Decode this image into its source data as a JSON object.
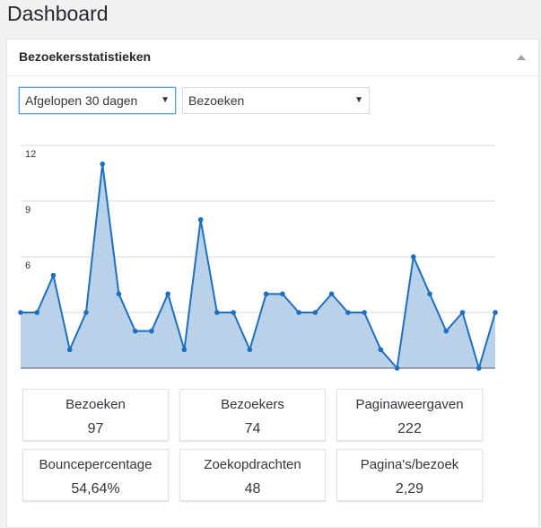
{
  "page": {
    "title": "Dashboard"
  },
  "widget": {
    "title": "Bezoekersstatistieken",
    "period_select": {
      "value": "Afgelopen 30 dagen"
    },
    "metric_select": {
      "value": "Bezoeken"
    }
  },
  "chart_data": {
    "type": "area",
    "title": "",
    "xlabel": "",
    "ylabel": "",
    "ylim": [
      0,
      12
    ],
    "yticks": [
      "3",
      "6",
      "9",
      "12"
    ],
    "grid": true,
    "series": [
      {
        "values": [
          3,
          3,
          5,
          1,
          3,
          11,
          4,
          2,
          2,
          4,
          1,
          8,
          3,
          3,
          1,
          4,
          4,
          3,
          3,
          4,
          3,
          3,
          1,
          0,
          6,
          4,
          2,
          3,
          0,
          3
        ]
      }
    ],
    "colors": {
      "line": "#1e6fbf",
      "fill": "#b9d2ea",
      "point": "#1e6fbf"
    }
  },
  "stats": [
    {
      "label": "Bezoeken",
      "value": "97"
    },
    {
      "label": "Bezoekers",
      "value": "74"
    },
    {
      "label": "Paginaweergaven",
      "value": "222"
    },
    {
      "label": "Bouncepercentage",
      "value": "54,64%"
    },
    {
      "label": "Zoekopdrachten",
      "value": "48"
    },
    {
      "label": "Pagina's/bezoek",
      "value": "2,29"
    }
  ]
}
